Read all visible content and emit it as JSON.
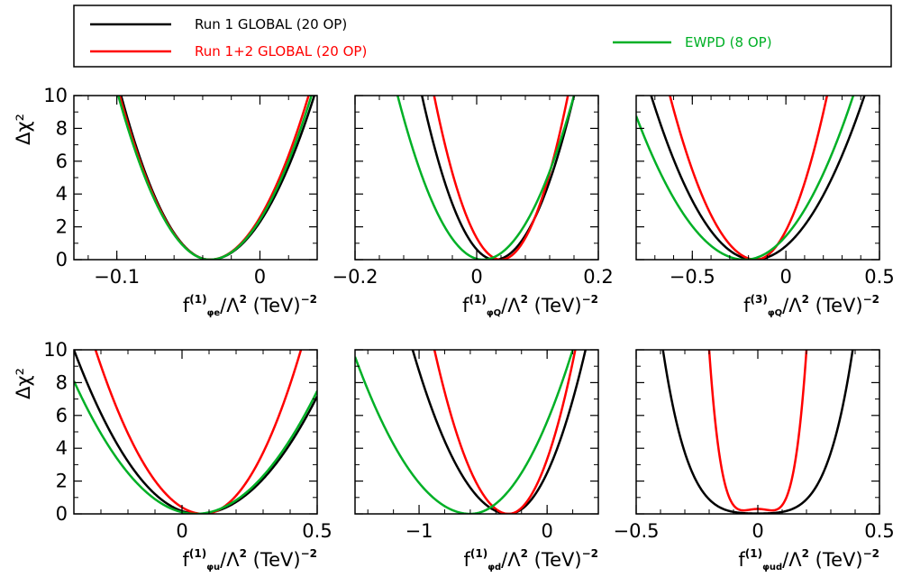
{
  "legend": {
    "entries": [
      {
        "label": "Run 1 GLOBAL (20 OP)",
        "color": "#000000"
      },
      {
        "label": "Run 1+2 GLOBAL  (20 OP)",
        "color": "#ff0000"
      },
      {
        "label": "EWPD (8 OP)",
        "color": "#00b026"
      }
    ]
  },
  "chart_data": [
    {
      "type": "line",
      "xlabel": {
        "f": "f",
        "sup": "(1)",
        "sub": "φe",
        "rest": "/Λ",
        "sup2": "2",
        "unit": " (TeV)",
        "sup3": "−2"
      },
      "ylabel": "Δχ²",
      "xlim": [
        -0.13,
        0.04
      ],
      "ylim": [
        0,
        10
      ],
      "xticks": [
        {
          "v": -0.1,
          "label": "−0.1"
        },
        {
          "v": 0,
          "label": "0"
        }
      ],
      "yticks": [
        {
          "v": 0,
          "label": "0"
        },
        {
          "v": 2,
          "label": "2"
        },
        {
          "v": 4,
          "label": "4"
        },
        {
          "v": 6,
          "label": "6"
        },
        {
          "v": 8,
          "label": "8"
        },
        {
          "v": 10,
          "label": "10"
        }
      ],
      "series": [
        {
          "name": "Run 1 GLOBAL (20 OP)",
          "color": "#000000",
          "form": "parabola",
          "min": -0.035,
          "lo": -0.097,
          "hi": 0.038
        },
        {
          "name": "Run 1+2 GLOBAL  (20 OP)",
          "color": "#ff0000",
          "form": "parabola",
          "min": -0.035,
          "lo": -0.098,
          "hi": 0.034
        },
        {
          "name": "EWPD (8 OP)",
          "color": "#00b026",
          "form": "parabola",
          "min": -0.035,
          "lo": -0.099,
          "hi": 0.036
        }
      ]
    },
    {
      "type": "line",
      "xlabel": {
        "f": "f",
        "sup": "(1)",
        "sub": "φQ",
        "rest": "/Λ",
        "sup2": "2",
        "unit": " (TeV)",
        "sup3": "−2"
      },
      "ylabel": "Δχ²",
      "xlim": [
        -0.2,
        0.2
      ],
      "ylim": [
        0,
        10
      ],
      "xticks": [
        {
          "v": -0.2,
          "label": "−0.2"
        },
        {
          "v": 0,
          "label": "0"
        },
        {
          "v": 0.2,
          "label": "0.2"
        }
      ],
      "yticks": [
        {
          "v": 0
        },
        {
          "v": 2
        },
        {
          "v": 4
        },
        {
          "v": 6
        },
        {
          "v": 8
        },
        {
          "v": 10
        }
      ],
      "series": [
        {
          "name": "Run 1 GLOBAL (20 OP)",
          "color": "#000000",
          "form": "parabola",
          "min": 0.03,
          "lo": -0.09,
          "hi": 0.16
        },
        {
          "name": "Run 1+2 GLOBAL  (20 OP)",
          "color": "#ff0000",
          "form": "parabola",
          "min": 0.04,
          "lo": -0.07,
          "hi": 0.15
        },
        {
          "name": "EWPD (8 OP)",
          "color": "#00b026",
          "form": "parabola",
          "min": 0.01,
          "lo": -0.13,
          "hi": 0.16
        }
      ]
    },
    {
      "type": "line",
      "xlabel": {
        "f": "f",
        "sup": "(3)",
        "sub": "φQ",
        "rest": "/Λ",
        "sup2": "2",
        "unit": " (TeV)",
        "sup3": "−2"
      },
      "ylabel": "Δχ²",
      "xlim": [
        -0.8,
        0.5
      ],
      "ylim": [
        0,
        10
      ],
      "xticks": [
        {
          "v": -0.5,
          "label": "−0.5"
        },
        {
          "v": 0,
          "label": "0"
        },
        {
          "v": 0.5,
          "label": "0.5"
        }
      ],
      "yticks": [
        {
          "v": 0
        },
        {
          "v": 2
        },
        {
          "v": 4
        },
        {
          "v": 6
        },
        {
          "v": 8
        },
        {
          "v": 10
        }
      ],
      "series": [
        {
          "name": "Run 1 GLOBAL (20 OP)",
          "color": "#000000",
          "form": "parabola",
          "min": -0.17,
          "lo": -0.72,
          "hi": 0.42
        },
        {
          "name": "Run 1+2 GLOBAL  (20 OP)",
          "color": "#ff0000",
          "form": "parabola",
          "min": -0.16,
          "lo": -0.62,
          "hi": 0.22
        },
        {
          "name": "EWPD (8 OP)",
          "color": "#00b026",
          "form": "parabola",
          "min": -0.22,
          "lo": -0.84,
          "hi": 0.36
        }
      ]
    },
    {
      "type": "line",
      "xlabel": {
        "f": "f",
        "sup": "(1)",
        "sub": "φu",
        "rest": "/Λ",
        "sup2": "2",
        "unit": " (TeV)",
        "sup3": "−2"
      },
      "ylabel": "Δχ²",
      "xlim": [
        -0.4,
        0.5
      ],
      "ylim": [
        0,
        10
      ],
      "xticks": [
        {
          "v": 0,
          "label": "0"
        },
        {
          "v": 0.5,
          "label": "0.5"
        }
      ],
      "yticks": [
        {
          "v": 0,
          "label": "0"
        },
        {
          "v": 2,
          "label": "2"
        },
        {
          "v": 4,
          "label": "4"
        },
        {
          "v": 6,
          "label": "6"
        },
        {
          "v": 8,
          "label": "8"
        },
        {
          "v": 10,
          "label": "10"
        }
      ],
      "series": [
        {
          "name": "Run 1 GLOBAL (20 OP)",
          "color": "#000000",
          "form": "parabola",
          "min": 0.06,
          "lo": -0.4,
          "hi": 0.58
        },
        {
          "name": "Run 1+2 GLOBAL  (20 OP)",
          "color": "#ff0000",
          "form": "parabola",
          "min": 0.08,
          "lo": -0.32,
          "hi": 0.44
        },
        {
          "name": "EWPD (8 OP)",
          "color": "#00b026",
          "form": "parabola",
          "min": 0.05,
          "lo": -0.45,
          "hi": 0.57
        }
      ]
    },
    {
      "type": "line",
      "xlabel": {
        "f": "f",
        "sup": "(1)",
        "sub": "φd",
        "rest": "/Λ",
        "sup2": "2",
        "unit": " (TeV)",
        "sup3": "−2"
      },
      "ylabel": "Δχ²",
      "xlim": [
        -1.5,
        0.4
      ],
      "ylim": [
        0,
        10
      ],
      "xticks": [
        {
          "v": -1,
          "label": "−1"
        },
        {
          "v": 0,
          "label": "0"
        }
      ],
      "yticks": [
        {
          "v": 0
        },
        {
          "v": 2
        },
        {
          "v": 4
        },
        {
          "v": 6
        },
        {
          "v": 8
        },
        {
          "v": 10
        }
      ],
      "series": [
        {
          "name": "Run 1 GLOBAL (20 OP)",
          "color": "#000000",
          "form": "parabola",
          "min": -0.3,
          "lo": -1.05,
          "hi": 0.3
        },
        {
          "name": "Run 1+2 GLOBAL  (20 OP)",
          "color": "#ff0000",
          "form": "parabola",
          "min": -0.3,
          "lo": -0.88,
          "hi": 0.22
        },
        {
          "name": "EWPD (8 OP)",
          "color": "#00b026",
          "form": "parabola",
          "min": -0.6,
          "lo": -1.52,
          "hi": 0.2
        }
      ]
    },
    {
      "type": "line",
      "xlabel": {
        "f": "f",
        "sup": "(1)",
        "sub": "φud",
        "rest": "/Λ",
        "sup2": "2",
        "unit": " (TeV)",
        "sup3": "−2"
      },
      "ylabel": "Δχ²",
      "xlim": [
        -0.5,
        0.5
      ],
      "ylim": [
        0,
        10
      ],
      "xticks": [
        {
          "v": -0.5,
          "label": "−0.5"
        },
        {
          "v": 0,
          "label": "0"
        },
        {
          "v": 0.5,
          "label": "0.5"
        }
      ],
      "yticks": [
        {
          "v": 0
        },
        {
          "v": 2
        },
        {
          "v": 4
        },
        {
          "v": 6
        },
        {
          "v": 8
        },
        {
          "v": 10
        }
      ],
      "series": [
        {
          "name": "Run 1 GLOBAL (20 OP)",
          "color": "#000000",
          "form": "quartic",
          "a": 0.02,
          "b": 6,
          "c": 0.39
        },
        {
          "name": "Run 1+2 GLOBAL  (20 OP)",
          "color": "#ff0000",
          "form": "quartic",
          "a": 0.3,
          "b": -50,
          "c": 0.2
        }
      ]
    }
  ]
}
